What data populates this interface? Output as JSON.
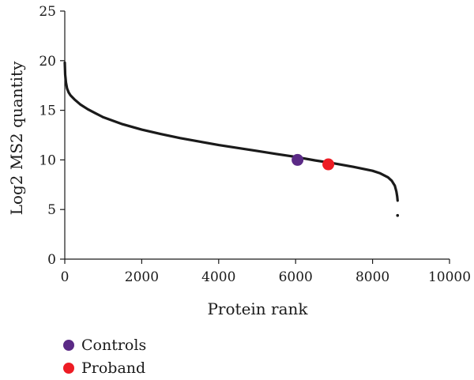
{
  "chart_data": {
    "type": "line",
    "title": "",
    "xlabel": "Protein rank",
    "ylabel": "Log2 MS2 quantity",
    "xlim": [
      0,
      10000
    ],
    "ylim": [
      0,
      25
    ],
    "x_ticks": [
      0,
      2000,
      4000,
      6000,
      8000,
      10000
    ],
    "y_ticks": [
      0,
      5,
      10,
      15,
      20,
      25
    ],
    "grid": false,
    "legend_position": "bottom-left",
    "series": [
      {
        "color": "#1a1a1a",
        "points": [
          [
            0,
            19.8
          ],
          [
            10,
            18.6
          ],
          [
            30,
            17.8
          ],
          [
            60,
            17.2
          ],
          [
            100,
            16.8
          ],
          [
            150,
            16.5
          ],
          [
            250,
            16.1
          ],
          [
            400,
            15.6
          ],
          [
            600,
            15.1
          ],
          [
            800,
            14.7
          ],
          [
            1000,
            14.3
          ],
          [
            1500,
            13.6
          ],
          [
            2000,
            13.05
          ],
          [
            2500,
            12.6
          ],
          [
            3000,
            12.2
          ],
          [
            3500,
            11.85
          ],
          [
            4000,
            11.5
          ],
          [
            4500,
            11.2
          ],
          [
            5000,
            10.9
          ],
          [
            5500,
            10.6
          ],
          [
            6000,
            10.3
          ],
          [
            6500,
            9.95
          ],
          [
            7000,
            9.65
          ],
          [
            7500,
            9.3
          ],
          [
            8000,
            8.9
          ],
          [
            8200,
            8.65
          ],
          [
            8400,
            8.25
          ],
          [
            8500,
            7.9
          ],
          [
            8580,
            7.4
          ],
          [
            8620,
            6.8
          ],
          [
            8640,
            6.3
          ],
          [
            8650,
            5.9
          ]
        ]
      }
    ],
    "outliers": [
      [
        8650,
        4.4
      ]
    ],
    "highlights": [
      {
        "name": "Controls",
        "x": 6050,
        "y": 10.0,
        "color": "#5b2a86"
      },
      {
        "name": "Proband",
        "x": 6850,
        "y": 9.55,
        "color": "#ed1c24"
      }
    ]
  },
  "legend": [
    {
      "label": "Controls",
      "color": "#5b2a86"
    },
    {
      "label": "Proband",
      "color": "#ed1c24"
    }
  ]
}
